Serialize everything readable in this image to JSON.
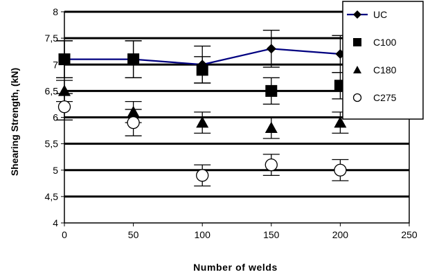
{
  "chart_data": {
    "type": "scatter",
    "title": "",
    "xlabel": "Number of welds",
    "ylabel": "Shearing Strength, (kN)",
    "xlim": [
      0,
      250
    ],
    "ylim": [
      4,
      8
    ],
    "x_ticks": [
      "0",
      "50",
      "100",
      "150",
      "200",
      "250"
    ],
    "y_ticks": [
      "4",
      "4,5",
      "5",
      "5,5",
      "6",
      "6,5",
      "7",
      "7,5",
      "8"
    ],
    "grid": "horizontal",
    "legend_position": "top-right",
    "series": [
      {
        "name": "UC",
        "marker": "diamond",
        "line": true,
        "color": "#000080",
        "x": [
          0,
          50,
          100,
          150,
          200
        ],
        "y": [
          7.1,
          7.1,
          7.0,
          7.3,
          7.2
        ],
        "err": [
          0.35,
          0.35,
          0.35,
          0.35,
          0.35
        ]
      },
      {
        "name": "C100",
        "marker": "square",
        "line": false,
        "color": "#000000",
        "x": [
          0,
          50,
          100,
          150,
          200
        ],
        "y": [
          7.1,
          7.1,
          6.9,
          6.5,
          6.6
        ],
        "err": [
          0.35,
          0.35,
          0.25,
          0.25,
          0.25
        ]
      },
      {
        "name": "C180",
        "marker": "triangle",
        "line": false,
        "color": "#000000",
        "x": [
          0,
          50,
          100,
          150,
          200
        ],
        "y": [
          6.5,
          6.1,
          5.9,
          5.8,
          5.9
        ],
        "err": [
          0.2,
          0.2,
          0.2,
          0.2,
          0.2
        ]
      },
      {
        "name": "C275",
        "marker": "circle-open",
        "line": false,
        "color": "#000000",
        "x": [
          0,
          50,
          100,
          150,
          200
        ],
        "y": [
          6.2,
          5.9,
          4.9,
          5.1,
          5.0
        ],
        "err": [
          0.25,
          0.25,
          0.2,
          0.2,
          0.2
        ]
      }
    ]
  }
}
